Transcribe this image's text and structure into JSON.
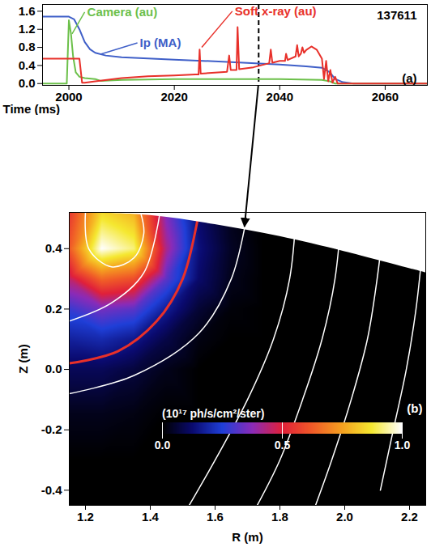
{
  "chart_data": [
    {
      "type": "line",
      "xlabel": "Time (ms)",
      "xlim": [
        1995,
        2068
      ],
      "xticks": [
        2000,
        2020,
        2040,
        2060
      ],
      "ylim": [
        -0.04,
        1.75
      ],
      "yticks": [
        {
          "value": 0,
          "label": "0.0"
        },
        0.4,
        0.8,
        1.2,
        1.6
      ],
      "vline": 2036,
      "text_marks": [
        {
          "text": "137611",
          "x": 2066,
          "y": 1.5,
          "color": "black"
        },
        {
          "text": "(a)",
          "x": 2066,
          "y": 0.1,
          "color": "black"
        }
      ],
      "series": [
        {
          "name": "Ip (MA)",
          "color": "#3f5fc8",
          "x": [
            1995,
            2000,
            2001,
            2002,
            2003,
            2004,
            2005,
            2007,
            2010,
            2020,
            2030,
            2040,
            2045,
            2048,
            2049.5,
            2050.5,
            2052,
            2054,
            2068
          ],
          "values": [
            1.48,
            1.48,
            1.42,
            1.2,
            0.92,
            0.76,
            0.68,
            0.62,
            0.58,
            0.53,
            0.48,
            0.42,
            0.38,
            0.35,
            0.25,
            0.1,
            0.03,
            0,
            0
          ],
          "label_at": [
            2013,
            0.9
          ],
          "pointer": [
            2006,
            0.65
          ]
        },
        {
          "name": "Camera (au)",
          "color": "#6cc04a",
          "x": [
            1995,
            1999.6,
            2000,
            2000.4,
            2000.8,
            2001.3,
            2002,
            2003,
            2005,
            2006,
            2010,
            2020,
            2030,
            2040,
            2048,
            2049.5,
            2050.5,
            2068
          ],
          "values": [
            0,
            0,
            1.4,
            1.1,
            0.6,
            0.25,
            0.15,
            0.12,
            0.1,
            0.06,
            0.08,
            0.1,
            0.1,
            0.1,
            0.08,
            0.05,
            0,
            0
          ],
          "label_at": [
            2003,
            1.58
          ],
          "pointer": [
            2000.6,
            1.1
          ]
        },
        {
          "name": "Soft x-ray (au)",
          "color": "#e8302a",
          "x": [
            1995,
            2002,
            2002.5,
            2003,
            2005,
            2010,
            2015,
            2020,
            2024,
            2024.6,
            2024.8,
            2025,
            2030,
            2030.4,
            2030.7,
            2031.8,
            2032,
            2032.3,
            2035,
            2038,
            2038.3,
            2038.6,
            2040,
            2041,
            2041.2,
            2041.5,
            2043,
            2043.3,
            2043.6,
            2044,
            2044.3,
            2044.6,
            2045,
            2046,
            2047,
            2048,
            2048.4,
            2048.8,
            2049.2,
            2049.6,
            2050,
            2050.5,
            2051,
            2068
          ],
          "values": [
            0.55,
            0.55,
            0.02,
            0.02,
            0.05,
            0.12,
            0.16,
            0.18,
            0.2,
            0.2,
            0.75,
            0.22,
            0.26,
            0.62,
            0.3,
            0.3,
            1.25,
            0.32,
            0.36,
            0.45,
            0.75,
            0.46,
            0.5,
            0.5,
            0.66,
            0.52,
            0.6,
            0.85,
            0.6,
            0.66,
            0.8,
            0.68,
            0.74,
            0.82,
            0.75,
            0.55,
            0.1,
            0.5,
            0.05,
            0.3,
            0.02,
            0.15,
            0,
            0
          ],
          "label_at": [
            2031,
            1.6
          ],
          "pointer": [
            2025.2,
            0.8
          ]
        }
      ]
    },
    {
      "type": "heatmap",
      "xlabel": "R (m)",
      "ylabel": "Z (m)",
      "xlim": [
        1.15,
        2.25
      ],
      "xticks": [
        1.2,
        1.4,
        1.6,
        1.8,
        {
          "value": 2,
          "label": "2.0"
        },
        2.2
      ],
      "ylim": [
        -0.45,
        0.52
      ],
      "yticks": [
        -0.4,
        -0.2,
        {
          "value": 0,
          "label": "0.0"
        },
        0.2,
        0.4
      ],
      "text_marks": [
        {
          "text": "(b)",
          "x": 2.24,
          "y": -0.13,
          "color": "white"
        }
      ],
      "cells": {
        "x": [
          1.15,
          1.25,
          1.35,
          1.45,
          1.55,
          1.65,
          1.75,
          1.85,
          1.95,
          2.05,
          2.15,
          2.25
        ],
        "y": [
          -0.45,
          -0.3,
          -0.15,
          0,
          0.1,
          0.2,
          0.3,
          0.4,
          0.52
        ],
        "values": [
          [
            0,
            0,
            0,
            0,
            0,
            0,
            0,
            0,
            0,
            0,
            0,
            0
          ],
          [
            0,
            0,
            0,
            0,
            0,
            0,
            0,
            0,
            0,
            0,
            0,
            0
          ],
          [
            0.03,
            0.03,
            0.02,
            0,
            0,
            0,
            0,
            0,
            0,
            0,
            0,
            0
          ],
          [
            0.1,
            0.1,
            0.07,
            0.03,
            0,
            0,
            0,
            0,
            0,
            0,
            0,
            0
          ],
          [
            0.18,
            0.2,
            0.16,
            0.08,
            0.02,
            0,
            0,
            0,
            0,
            0,
            0,
            0
          ],
          [
            0.28,
            0.35,
            0.32,
            0.17,
            0.06,
            0.01,
            0,
            0,
            0,
            0,
            0,
            0
          ],
          [
            0.45,
            0.65,
            0.6,
            0.32,
            0.12,
            0.03,
            0,
            0,
            0,
            0,
            0,
            0
          ],
          [
            0.62,
            1.0,
            0.92,
            0.42,
            0.14,
            0.04,
            0,
            0,
            0,
            0,
            0,
            0
          ],
          [
            0.55,
            0.85,
            0.78,
            0.36,
            0.12,
            0.03,
            0,
            0,
            0,
            0,
            0,
            0
          ]
        ]
      },
      "colorbar": {
        "label": "(10¹⁷ ph/s/cm²/ster)",
        "range": [
          0,
          1
        ],
        "ticks": [
          {
            "value": 0,
            "label": "0.0"
          },
          0.5,
          {
            "value": 1,
            "label": "1.0"
          }
        ]
      },
      "contours": [
        {
          "color": "white",
          "points": [
            [
              1.2,
              0.52
            ],
            [
              1.21,
              0.4
            ],
            [
              1.28,
              0.34
            ],
            [
              1.35,
              0.37
            ],
            [
              1.38,
              0.45
            ],
            [
              1.37,
              0.52
            ]
          ]
        },
        {
          "color": "white",
          "points": [
            [
              1.15,
              0.16
            ],
            [
              1.28,
              0.22
            ],
            [
              1.38,
              0.32
            ],
            [
              1.43,
              0.52
            ]
          ]
        },
        {
          "color": "#e8302a",
          "points": [
            [
              1.15,
              0.02
            ],
            [
              1.3,
              0.06
            ],
            [
              1.42,
              0.16
            ],
            [
              1.5,
              0.3
            ],
            [
              1.55,
              0.52
            ]
          ]
        },
        {
          "color": "white",
          "points": [
            [
              1.15,
              -0.08
            ],
            [
              1.35,
              -0.02
            ],
            [
              1.55,
              0.12
            ],
            [
              1.65,
              0.3
            ],
            [
              1.7,
              0.52
            ]
          ]
        },
        {
          "color": "white",
          "points": [
            [
              1.85,
              0.52
            ],
            [
              1.83,
              0.3
            ],
            [
              1.78,
              0.1
            ],
            [
              1.7,
              -0.1
            ],
            [
              1.6,
              -0.3
            ],
            [
              1.52,
              -0.45
            ]
          ]
        },
        {
          "color": "white",
          "points": [
            [
              1.99,
              0.52
            ],
            [
              1.97,
              0.3
            ],
            [
              1.93,
              0.1
            ],
            [
              1.87,
              -0.1
            ],
            [
              1.8,
              -0.3
            ],
            [
              1.73,
              -0.45
            ]
          ]
        },
        {
          "color": "white",
          "points": [
            [
              2.12,
              0.48
            ],
            [
              2.1,
              0.3
            ],
            [
              2.07,
              0.1
            ],
            [
              2.02,
              -0.1
            ],
            [
              1.96,
              -0.3
            ],
            [
              1.91,
              -0.45
            ]
          ]
        },
        {
          "color": "white",
          "points": [
            [
              2.24,
              0.4
            ],
            [
              2.22,
              0.2
            ],
            [
              2.19,
              0
            ],
            [
              2.15,
              -0.2
            ],
            [
              2.11,
              -0.4
            ]
          ]
        }
      ],
      "image_edge": [
        [
          1.15,
          0.52
        ],
        [
          1.4,
          0.51
        ],
        [
          1.6,
          0.48
        ],
        [
          1.8,
          0.44
        ],
        [
          2.0,
          0.39
        ],
        [
          2.25,
          0.32
        ]
      ]
    }
  ]
}
